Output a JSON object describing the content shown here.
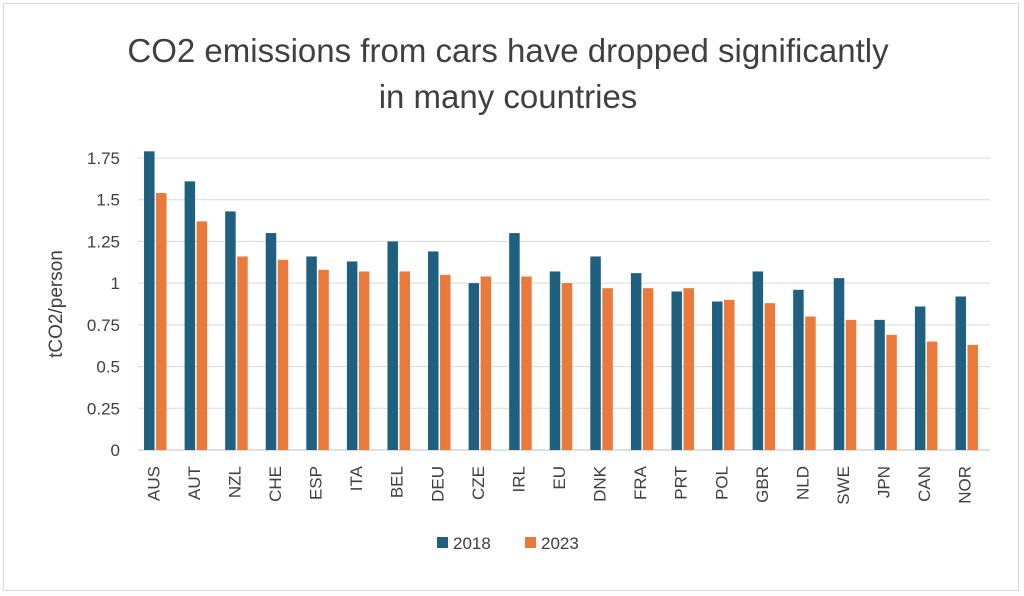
{
  "title_lines": [
    "CO2 emissions from cars have dropped significantly",
    "in many countries"
  ],
  "chart_data": {
    "type": "bar",
    "title": "CO2 emissions from cars have dropped significantly in many countries",
    "xlabel": "",
    "ylabel": "tCO2/person",
    "ylim": [
      0,
      1.75
    ],
    "yticks": [
      "0",
      "0.25",
      "0.5",
      "0.75",
      "1",
      "1.25",
      "1.5",
      "1.75"
    ],
    "grid": true,
    "legend_position": "bottom",
    "categories": [
      "AUS",
      "AUT",
      "NZL",
      "CHE",
      "ESP",
      "ITA",
      "BEL",
      "DEU",
      "CZE",
      "IRL",
      "EU",
      "DNK",
      "FRA",
      "PRT",
      "POL",
      "GBR",
      "NLD",
      "SWE",
      "JPN",
      "CAN",
      "NOR"
    ],
    "series": [
      {
        "name": "2018",
        "color": "#1f5f7f",
        "values": [
          1.79,
          1.61,
          1.43,
          1.3,
          1.16,
          1.13,
          1.25,
          1.19,
          1.0,
          1.3,
          1.07,
          1.16,
          1.06,
          0.95,
          0.89,
          1.07,
          0.96,
          1.03,
          0.78,
          0.86,
          0.92
        ]
      },
      {
        "name": "2023",
        "color": "#e97a3b",
        "values": [
          1.54,
          1.37,
          1.16,
          1.14,
          1.08,
          1.07,
          1.07,
          1.05,
          1.04,
          1.04,
          1.0,
          0.97,
          0.97,
          0.97,
          0.9,
          0.88,
          0.8,
          0.78,
          0.69,
          0.65,
          0.63
        ]
      }
    ]
  }
}
